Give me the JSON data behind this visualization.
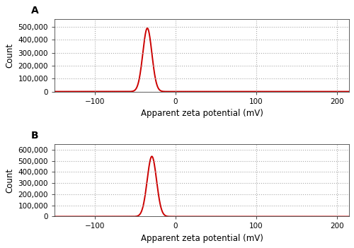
{
  "panel_A": {
    "label": "A",
    "mean": -35.0,
    "std": 5.6,
    "peak": 490000,
    "ylim": [
      0,
      560000
    ],
    "yticks": [
      0,
      100000,
      200000,
      300000,
      400000,
      500000
    ],
    "ylabel": "Count",
    "xlabel": "Apparent zeta potential (mV)",
    "xlim": [
      -150,
      215
    ],
    "xticks": [
      -100,
      0,
      100,
      200
    ]
  },
  "panel_B": {
    "label": "B",
    "mean": -29.4,
    "std": 5.8,
    "peak": 540000,
    "ylim": [
      0,
      650000
    ],
    "yticks": [
      0,
      100000,
      200000,
      300000,
      400000,
      500000,
      600000
    ],
    "ylabel": "Count",
    "xlabel": "Apparent zeta potential (mV)",
    "xlim": [
      -150,
      215
    ],
    "xticks": [
      -100,
      0,
      100,
      200
    ]
  },
  "line_color": "#cc0000",
  "line_width": 1.4,
  "grid_color": "#aaaaaa",
  "grid_style": ":",
  "bg_color": "#ffffff",
  "label_fontsize": 8.5,
  "tick_fontsize": 7.5,
  "panel_label_fontsize": 10
}
